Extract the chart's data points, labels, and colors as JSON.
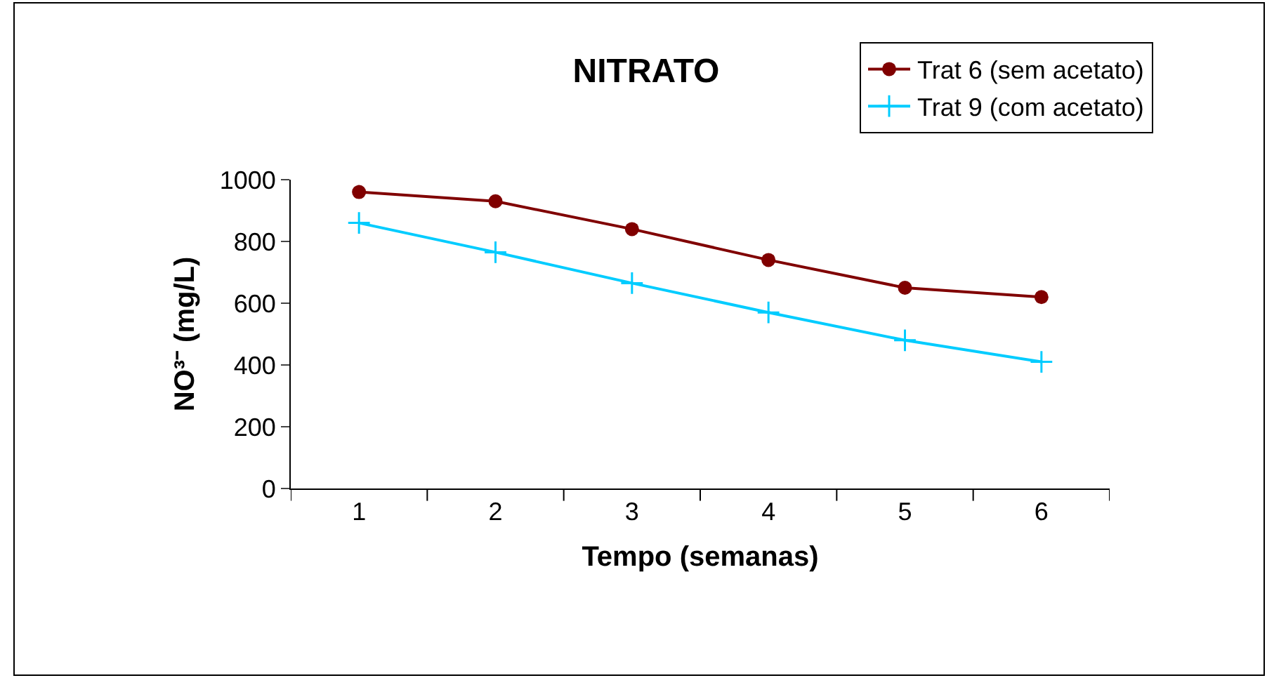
{
  "chart_data": {
    "type": "line",
    "title": "NITRATO",
    "xlabel": "Tempo (semanas)",
    "ylabel": "NO³⁻ (mg/L)",
    "categories": [
      "1",
      "2",
      "3",
      "4",
      "5",
      "6"
    ],
    "series": [
      {
        "name": "Trat 6 (sem acetato)",
        "color": "#800000",
        "marker": "circle",
        "values": [
          960,
          930,
          840,
          740,
          650,
          620
        ]
      },
      {
        "name": "Trat 9 (com acetato)",
        "color": "#00ccff",
        "marker": "cross",
        "values": [
          860,
          765,
          665,
          570,
          480,
          410
        ]
      }
    ],
    "ylim": [
      0,
      1000
    ],
    "yticks": [
      0,
      200,
      400,
      600,
      800,
      1000
    ],
    "legend": "top right"
  }
}
